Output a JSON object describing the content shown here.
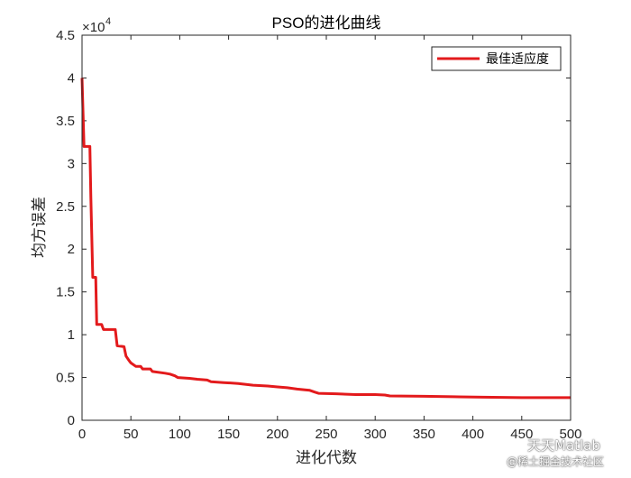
{
  "chart_data": {
    "type": "line",
    "title": "PSO的进化曲线",
    "xlabel": "进化代数",
    "ylabel": "均方误差",
    "xlim": [
      0,
      500
    ],
    "ylim": [
      0,
      45000
    ],
    "x_ticks": [
      "0",
      "50",
      "100",
      "150",
      "200",
      "250",
      "300",
      "350",
      "400",
      "450",
      "500"
    ],
    "y_ticks": [
      "0",
      "0.5",
      "1",
      "1.5",
      "2",
      "2.5",
      "3",
      "3.5",
      "4",
      "4.5"
    ],
    "y_exponent_base": "×10",
    "y_exponent_power": "4",
    "legend_position": "top-right",
    "grid": false,
    "series": [
      {
        "name": "最佳适应度",
        "color": "#e31a1c",
        "points": [
          [
            0,
            40000
          ],
          [
            2,
            32000
          ],
          [
            8,
            32000
          ],
          [
            9,
            26000
          ],
          [
            11,
            16700
          ],
          [
            14,
            16700
          ],
          [
            15,
            11200
          ],
          [
            20,
            11200
          ],
          [
            22,
            10600
          ],
          [
            34,
            10600
          ],
          [
            36,
            8700
          ],
          [
            43,
            8600
          ],
          [
            45,
            7500
          ],
          [
            48,
            7000
          ],
          [
            50,
            6700
          ],
          [
            55,
            6300
          ],
          [
            60,
            6300
          ],
          [
            62,
            6000
          ],
          [
            70,
            6000
          ],
          [
            72,
            5700
          ],
          [
            85,
            5500
          ],
          [
            90,
            5400
          ],
          [
            95,
            5200
          ],
          [
            98,
            5000
          ],
          [
            110,
            4900
          ],
          [
            118,
            4800
          ],
          [
            128,
            4700
          ],
          [
            132,
            4500
          ],
          [
            145,
            4400
          ],
          [
            160,
            4300
          ],
          [
            175,
            4100
          ],
          [
            190,
            4000
          ],
          [
            200,
            3900
          ],
          [
            210,
            3800
          ],
          [
            220,
            3650
          ],
          [
            228,
            3550
          ],
          [
            233,
            3500
          ],
          [
            238,
            3300
          ],
          [
            242,
            3150
          ],
          [
            260,
            3100
          ],
          [
            280,
            3000
          ],
          [
            300,
            3000
          ],
          [
            310,
            2950
          ],
          [
            315,
            2850
          ],
          [
            350,
            2800
          ],
          [
            380,
            2750
          ],
          [
            410,
            2700
          ],
          [
            450,
            2650
          ],
          [
            500,
            2650
          ]
        ]
      }
    ]
  },
  "watermark": {
    "line1": "天天Matlab",
    "line2": "@稀土掘金技术社区"
  }
}
